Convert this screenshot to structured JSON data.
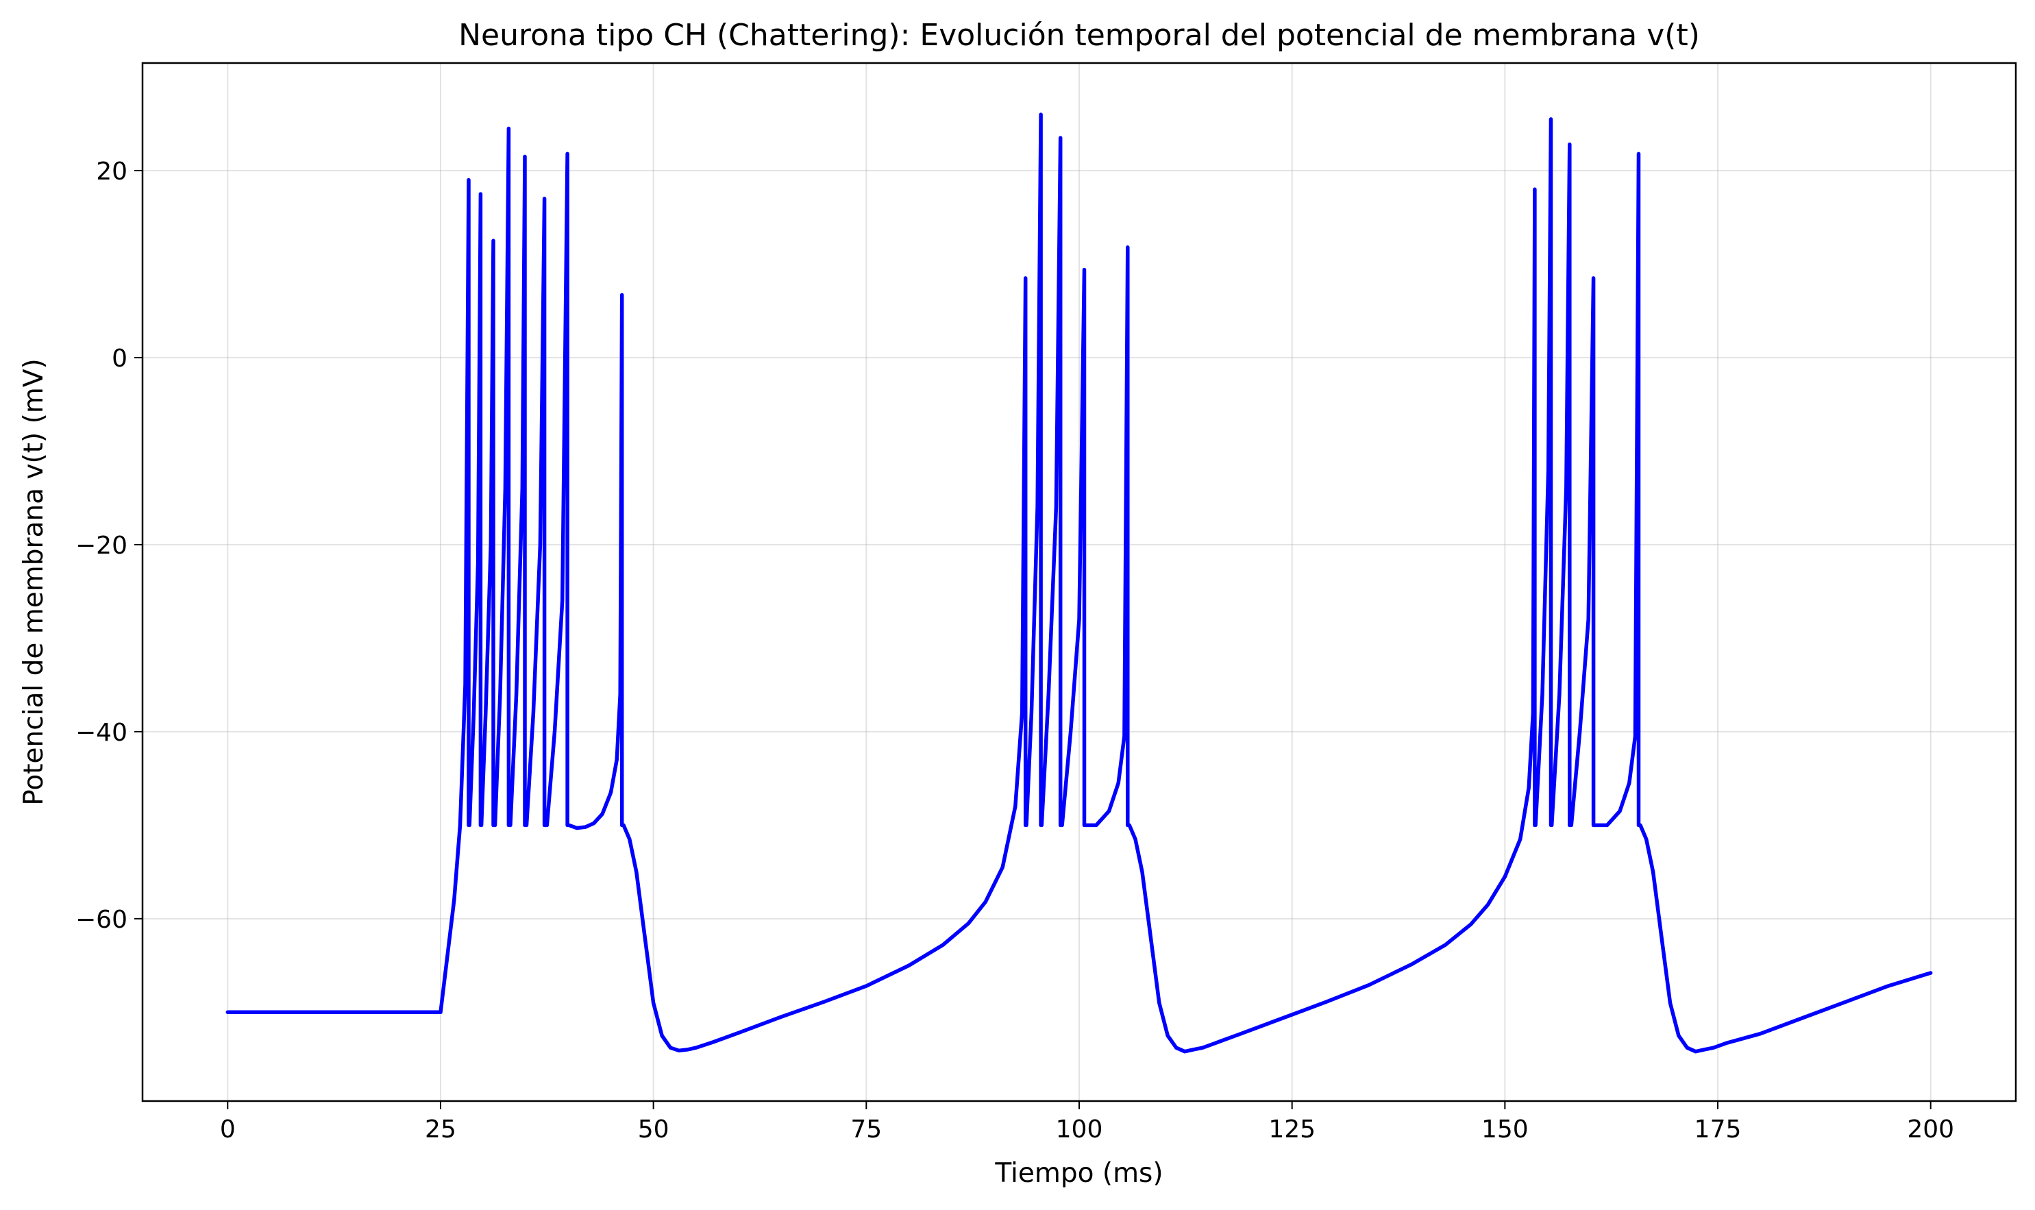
{
  "chart_data": {
    "type": "line",
    "title": "Neurona tipo CH (Chattering): Evolución temporal del potencial de membrana v(t)",
    "xlabel": "Tiempo (ms)",
    "ylabel": "Potencial de membrana v(t) (mV)",
    "xlim": [
      -10,
      210
    ],
    "ylim": [
      -79.5,
      31.5
    ],
    "xticks": [
      0,
      25,
      50,
      75,
      100,
      125,
      150,
      175,
      200
    ],
    "yticks": [
      20,
      0,
      -20,
      -40,
      -60
    ],
    "xtick_labels": [
      "0",
      "25",
      "50",
      "75",
      "100",
      "125",
      "150",
      "175",
      "200"
    ],
    "ytick_labels": [
      "20",
      "0",
      "−20",
      "−40",
      "−60"
    ],
    "grid": true,
    "series_color": "#0000ff",
    "series": [
      {
        "x": [
          0,
          25,
          25.8,
          26.6,
          27.3,
          27.9,
          28.3,
          28.3,
          28.4,
          28.9,
          29.4,
          29.7,
          29.7,
          29.8,
          30.3,
          30.9,
          31.2,
          31.2,
          31.4,
          32.0,
          32.6,
          33.0,
          33.0,
          33.2,
          33.9,
          34.6,
          34.9,
          34.9,
          35.1,
          35.9,
          36.7,
          37.2,
          37.2,
          37.5,
          38.4,
          39.3,
          39.9,
          39.9,
          40.1,
          41,
          42,
          43,
          44,
          45,
          45.7,
          46.1,
          46.3,
          46.3,
          46.5,
          47.2,
          48,
          49,
          50,
          51,
          52,
          53,
          54,
          55,
          57,
          60,
          65,
          70,
          75,
          80,
          84,
          87,
          89,
          91,
          92.5,
          93.3,
          93.7,
          93.7,
          93.8,
          94.4,
          95.1,
          95.5,
          95.5,
          95.6,
          96.4,
          97.3,
          97.8,
          97.8,
          98.0,
          99.0,
          100.0,
          100.6,
          100.6,
          100.8,
          102,
          103.5,
          104.6,
          105.3,
          105.7,
          105.7,
          105.9,
          106.6,
          107.4,
          108.4,
          109.4,
          110.4,
          111.4,
          112.4,
          113.4,
          114.5,
          116,
          119,
          124,
          129,
          134,
          139,
          143,
          146,
          148,
          150,
          151.8,
          152.8,
          153.3,
          153.5,
          153.5,
          153.6,
          154.4,
          155.1,
          155.4,
          155.4,
          155.5,
          156.4,
          157.2,
          157.6,
          157.6,
          157.8,
          158.8,
          159.8,
          160.4,
          160.4,
          160.6,
          162,
          163.5,
          164.6,
          165.3,
          165.7,
          165.7,
          165.9,
          166.6,
          167.4,
          168.4,
          169.4,
          170.4,
          171.4,
          172.4,
          173.4,
          174.5,
          176,
          180,
          185,
          190,
          195,
          200
        ],
        "y": [
          -70,
          -70,
          -64,
          -58,
          -50,
          -35,
          19,
          -50,
          -50,
          -38,
          -22,
          17.5,
          -50,
          -50,
          -38,
          -20,
          12.5,
          -50,
          -50,
          -36,
          -14,
          24.5,
          -50,
          -50,
          -36,
          -14,
          21.5,
          -50,
          -50,
          -38,
          -20,
          17,
          -50,
          -50,
          -40,
          -26,
          21.8,
          -50,
          -50,
          -50.3,
          -50.2,
          -49.8,
          -48.8,
          -46.5,
          -43,
          -36,
          6.7,
          -50,
          -50,
          -51.5,
          -55,
          -62,
          -69,
          -72.5,
          -73.8,
          -74.1,
          -74,
          -73.8,
          -73.2,
          -72.2,
          -70.5,
          -68.9,
          -67.2,
          -65,
          -62.8,
          -60.5,
          -58.2,
          -54.5,
          -48,
          -38,
          8.5,
          -50,
          -50,
          -38,
          -16,
          26,
          -50,
          -50,
          -36,
          -16,
          23.5,
          -50,
          -50,
          -40,
          -28,
          9.4,
          -50,
          -50,
          -50,
          -48.5,
          -45.5,
          -40.5,
          11.8,
          -50,
          -50,
          -51.5,
          -55,
          -62,
          -69,
          -72.5,
          -73.8,
          -74.2,
          -74,
          -73.8,
          -73.3,
          -72.3,
          -70.6,
          -68.9,
          -67.1,
          -64.9,
          -62.8,
          -60.6,
          -58.5,
          -55.5,
          -51.5,
          -46,
          -38,
          18,
          -50,
          -50,
          -36,
          -12,
          25.5,
          -50,
          -50,
          -36,
          -14,
          22.8,
          -50,
          -50,
          -40,
          -28,
          8.5,
          -50,
          -50,
          -50,
          -48.5,
          -45.5,
          -40.5,
          21.8,
          -50,
          -50,
          -51.5,
          -55,
          -62,
          -69,
          -72.5,
          -73.8,
          -74.2,
          -74,
          -73.8,
          -73.3,
          -72.3,
          -70.6,
          -68.9,
          -67.2,
          -65.8
        ]
      }
    ]
  }
}
